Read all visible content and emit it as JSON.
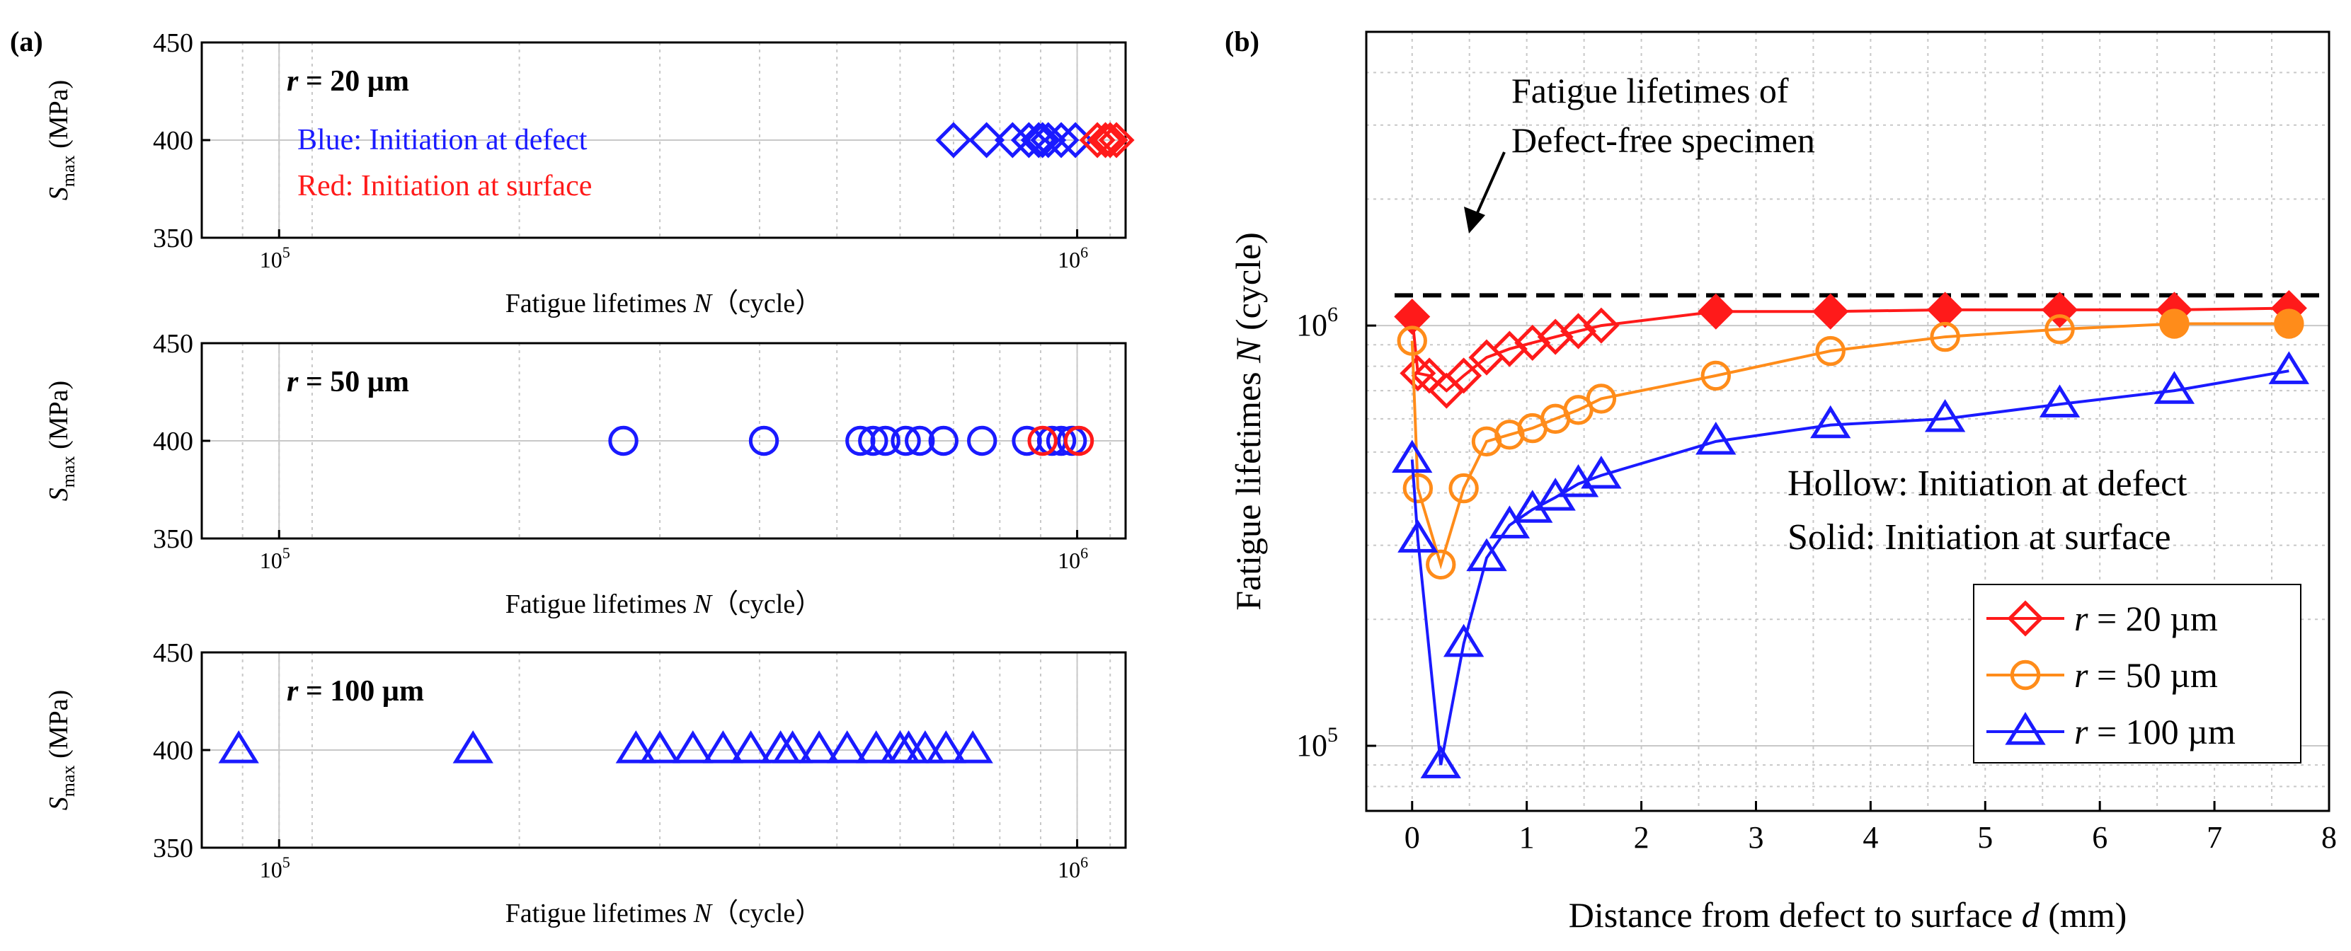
{
  "colors": {
    "blue": "#1a1aff",
    "red": "#ff1a1a",
    "orange": "#ff8c1a",
    "axis": "#000000",
    "grid": "#c8c8c8"
  },
  "panel_a_label": "(a)",
  "panel_b_label": "(b)",
  "chart_data": [
    {
      "type": "scatter",
      "panel": "a",
      "title": "r = 20 µm",
      "title_var": "r",
      "title_rest": " = 20 µm",
      "xlabel": "Fatigue lifetimes N（cycle）",
      "xlabel_pre": "Fatigue lifetimes ",
      "xlabel_var": "N",
      "xlabel_post": "（cycle）",
      "ylabel": "Smax (MPa)",
      "ylabel_var": "S",
      "ylabel_sub": "max",
      "ylabel_unit": " (MPa)",
      "xscale": "log",
      "xlim": [
        80000,
        1150000
      ],
      "ylim": [
        350,
        450
      ],
      "yticks": [
        350,
        400,
        450
      ],
      "xticks": [
        {
          "value": 100000,
          "base": "10",
          "exp": "5"
        },
        {
          "value": 1000000,
          "base": "10",
          "exp": "6"
        }
      ],
      "annotations": [
        {
          "text": "Blue: Initiation at defect",
          "color": "#1a1aff"
        },
        {
          "text": "Red: Initiation at surface",
          "color": "#ff1a1a"
        }
      ],
      "series": [
        {
          "name": "Initiation at defect",
          "color": "#1a1aff",
          "marker": "diamond",
          "filled": false,
          "x": [
            700000,
            770000,
            830000,
            870000,
            895000,
            905000,
            920000,
            955000,
            995000
          ],
          "y": [
            400,
            400,
            400,
            400,
            400,
            400,
            400,
            400,
            400
          ]
        },
        {
          "name": "Initiation at surface",
          "color": "#ff1a1a",
          "marker": "diamond",
          "filled": false,
          "x": [
            1060000,
            1085000,
            1100000,
            1120000
          ],
          "y": [
            400,
            400,
            400,
            400
          ]
        }
      ]
    },
    {
      "type": "scatter",
      "panel": "a",
      "title": "r = 50 µm",
      "title_var": "r",
      "title_rest": " = 50 µm",
      "xlabel": "Fatigue lifetimes N（cycle）",
      "xlabel_pre": "Fatigue lifetimes ",
      "xlabel_var": "N",
      "xlabel_post": "（cycle）",
      "ylabel": "Smax (MPa)",
      "ylabel_var": "S",
      "ylabel_sub": "max",
      "ylabel_unit": " (MPa)",
      "xscale": "log",
      "xlim": [
        80000,
        1150000
      ],
      "ylim": [
        350,
        450
      ],
      "yticks": [
        350,
        400,
        450
      ],
      "xticks": [
        {
          "value": 100000,
          "base": "10",
          "exp": "5"
        },
        {
          "value": 1000000,
          "base": "10",
          "exp": "6"
        }
      ],
      "series": [
        {
          "name": "Initiation at defect",
          "color": "#1a1aff",
          "marker": "circle",
          "filled": false,
          "x": [
            270000,
            405000,
            535000,
            555000,
            575000,
            610000,
            635000,
            680000,
            760000,
            865000,
            930000,
            955000,
            985000
          ],
          "y": [
            400,
            400,
            400,
            400,
            400,
            400,
            400,
            400,
            400,
            400,
            400,
            400,
            400
          ]
        },
        {
          "name": "Initiation at surface",
          "color": "#ff1a1a",
          "marker": "circle",
          "filled": false,
          "x": [
            905000,
            1005000
          ],
          "y": [
            400,
            400
          ]
        }
      ]
    },
    {
      "type": "scatter",
      "panel": "a",
      "title": "r = 100 µm",
      "title_var": "r",
      "title_rest": " = 100 µm",
      "xlabel": "Fatigue lifetimes N（cycle）",
      "xlabel_pre": "Fatigue lifetimes ",
      "xlabel_var": "N",
      "xlabel_post": "（cycle）",
      "ylabel": "Smax (MPa)",
      "ylabel_var": "S",
      "ylabel_sub": "max",
      "ylabel_unit": " (MPa)",
      "xscale": "log",
      "xlim": [
        80000,
        1150000
      ],
      "ylim": [
        350,
        450
      ],
      "yticks": [
        350,
        400,
        450
      ],
      "xticks": [
        {
          "value": 100000,
          "base": "10",
          "exp": "5"
        },
        {
          "value": 1000000,
          "base": "10",
          "exp": "6"
        }
      ],
      "series": [
        {
          "name": "Initiation at defect",
          "color": "#1a1aff",
          "marker": "triangle",
          "filled": false,
          "x": [
            89000,
            175000,
            280000,
            300000,
            330000,
            360000,
            390000,
            425000,
            440000,
            475000,
            515000,
            560000,
            600000,
            615000,
            645000,
            685000,
            740000
          ],
          "y": [
            400,
            400,
            400,
            400,
            400,
            400,
            400,
            400,
            400,
            400,
            400,
            400,
            400,
            400,
            400,
            400,
            400
          ]
        }
      ]
    },
    {
      "type": "line",
      "panel": "b",
      "xlabel": "Distance from defect to surface d (mm)",
      "xlabel_pre": "Distance from defect to surface ",
      "xlabel_var": "d",
      "xlabel_post": " (mm)",
      "ylabel": "Fatigue lifetimes N (cycle)",
      "ylabel_pre": "Fatigue lifetimes ",
      "ylabel_var": "N",
      "ylabel_post": " (cycle)",
      "yscale": "log",
      "xlim": [
        -0.4,
        8
      ],
      "ylim": [
        70000,
        5000000
      ],
      "xticks": [
        "0",
        "1",
        "2",
        "3",
        "4",
        "5",
        "6",
        "7",
        "8"
      ],
      "xtick_values": [
        0,
        1,
        2,
        3,
        4,
        5,
        6,
        7,
        8
      ],
      "yticks": [
        {
          "value": 100000,
          "base": "10",
          "exp": "5"
        },
        {
          "value": 1000000,
          "base": "10",
          "exp": "6"
        }
      ],
      "reference_line": {
        "value": 1180000,
        "label_line1": "Fatigue lifetimes of",
        "label_line2": "Defect-free specimen"
      },
      "annotations": [
        {
          "text": "Hollow: Initiation at defect"
        },
        {
          "text": "Solid: Initiation at surface"
        }
      ],
      "legend": {
        "position": "bottom-right",
        "entries": [
          {
            "label": "r = 20 µm",
            "var": "r",
            "rest": " = 20 µm",
            "color": "#ff1a1a",
            "marker": "diamond"
          },
          {
            "label": "r = 50 µm",
            "var": "r",
            "rest": " = 50 µm",
            "color": "#ff8c1a",
            "marker": "circle"
          },
          {
            "label": "r = 100 µm",
            "var": "r",
            "rest": " = 100 µm",
            "color": "#1a1aff",
            "marker": "triangle"
          }
        ]
      },
      "series": [
        {
          "name": "r = 20 µm",
          "color": "#ff1a1a",
          "marker": "diamond",
          "x": [
            0,
            0.05,
            0.15,
            0.3,
            0.45,
            0.65,
            0.85,
            1.05,
            1.25,
            1.45,
            1.65,
            2.65,
            3.65,
            4.65,
            5.65,
            6.65,
            7.65
          ],
          "y": [
            1050000,
            770000,
            760000,
            700000,
            760000,
            840000,
            880000,
            910000,
            940000,
            970000,
            1000000,
            1080000,
            1080000,
            1090000,
            1090000,
            1090000,
            1100000
          ],
          "filled": [
            true,
            false,
            false,
            false,
            false,
            false,
            false,
            false,
            false,
            false,
            false,
            true,
            true,
            true,
            true,
            true,
            true
          ]
        },
        {
          "name": "r = 50 µm",
          "color": "#ff8c1a",
          "marker": "circle",
          "x": [
            0,
            0.05,
            0.25,
            0.45,
            0.65,
            0.85,
            1.05,
            1.25,
            1.45,
            1.65,
            2.65,
            3.65,
            4.65,
            5.65,
            6.65,
            7.65
          ],
          "y": [
            920000,
            410000,
            270000,
            410000,
            530000,
            550000,
            570000,
            600000,
            630000,
            670000,
            760000,
            870000,
            940000,
            980000,
            1010000,
            1010000
          ],
          "filled": [
            false,
            false,
            false,
            false,
            false,
            false,
            false,
            false,
            false,
            false,
            false,
            false,
            false,
            false,
            true,
            true
          ]
        },
        {
          "name": "r = 100 µm",
          "color": "#1a1aff",
          "marker": "triangle",
          "x": [
            0,
            0.05,
            0.25,
            0.45,
            0.65,
            0.85,
            1.05,
            1.25,
            1.45,
            1.65,
            2.65,
            3.65,
            4.65,
            5.65,
            6.65,
            7.65
          ],
          "y": [
            480000,
            310000,
            90000,
            175000,
            280000,
            335000,
            365000,
            390000,
            420000,
            440000,
            530000,
            580000,
            600000,
            650000,
            700000,
            780000
          ],
          "filled": [
            false,
            false,
            false,
            false,
            false,
            false,
            false,
            false,
            false,
            false,
            false,
            false,
            false,
            false,
            false,
            false
          ]
        }
      ]
    }
  ]
}
